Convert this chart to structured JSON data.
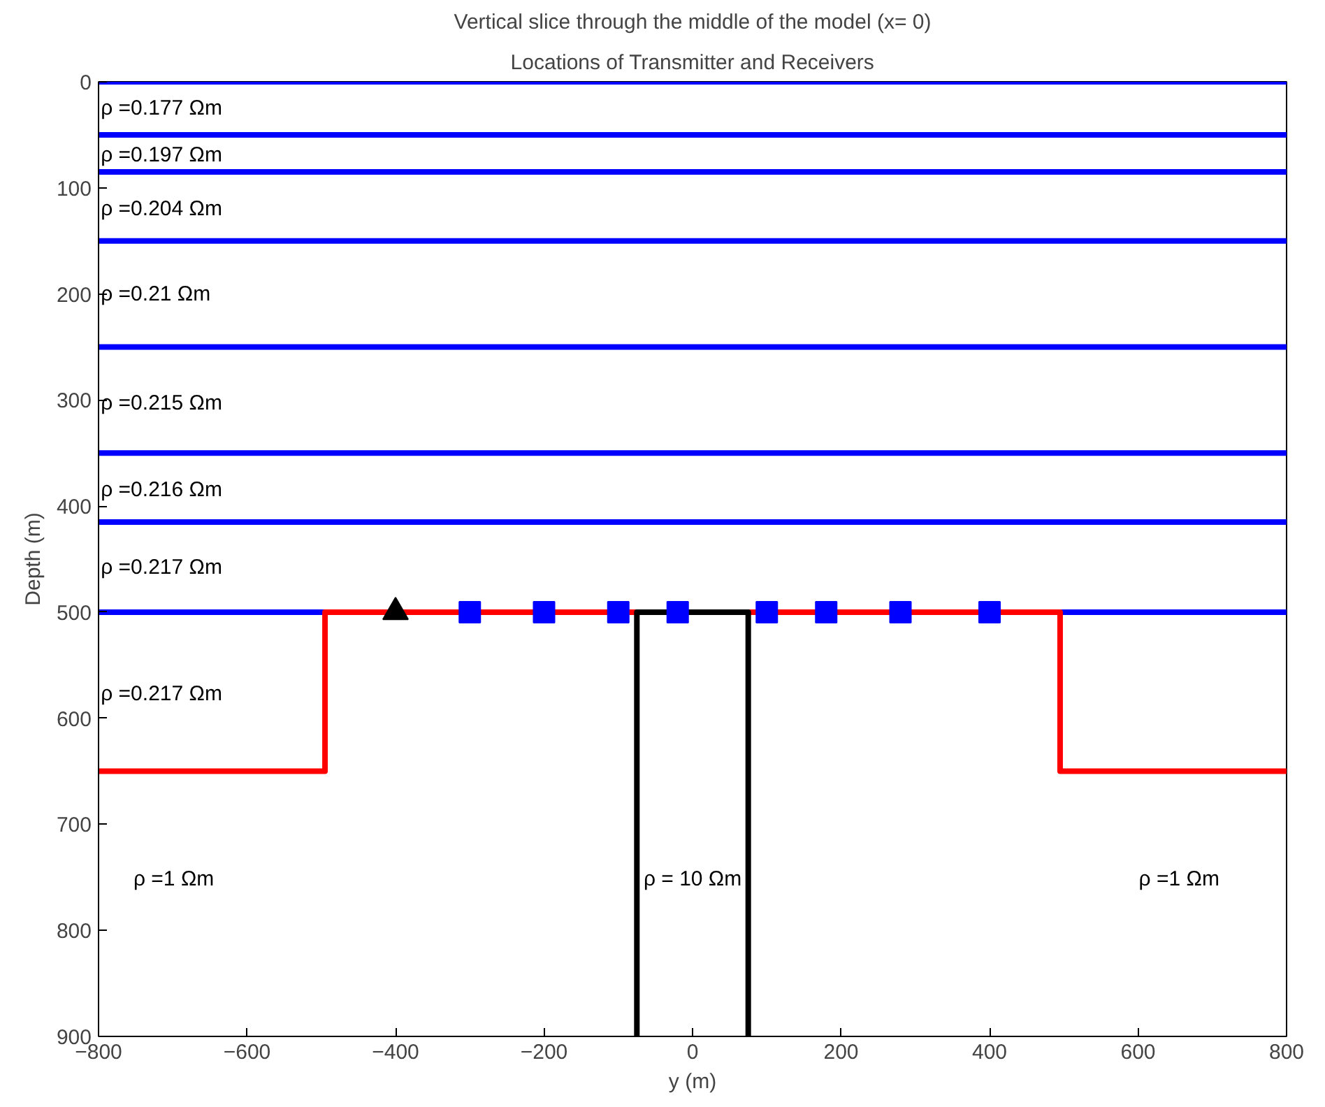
{
  "chart_data": {
    "type": "line",
    "title": "Vertical slice through the middle of the model (x= 0)",
    "subtitle": "Locations of Transmitter and Receivers",
    "xlabel": "y (m)",
    "ylabel": "Depth (m)",
    "xlim": [
      -800,
      800
    ],
    "ylim": [
      900,
      0
    ],
    "xticks": [
      -800,
      -600,
      -400,
      -200,
      0,
      200,
      400,
      600,
      800
    ],
    "yticks": [
      0,
      100,
      200,
      300,
      400,
      500,
      600,
      700,
      800,
      900
    ],
    "grid": false,
    "line_style": "solid",
    "marker": "none",
    "series": [
      {
        "color": "#0000ff",
        "x": [
          -800,
          800
        ],
        "values": [
          0,
          0
        ]
      },
      {
        "color": "#0000ff",
        "x": [
          -800,
          800
        ],
        "values": [
          50,
          50
        ]
      },
      {
        "color": "#0000ff",
        "x": [
          -800,
          800
        ],
        "values": [
          85,
          85
        ]
      },
      {
        "color": "#0000ff",
        "x": [
          -800,
          800
        ],
        "values": [
          150,
          150
        ]
      },
      {
        "color": "#0000ff",
        "x": [
          -800,
          800
        ],
        "values": [
          250,
          250
        ]
      },
      {
        "color": "#0000ff",
        "x": [
          -800,
          800
        ],
        "values": [
          350,
          350
        ]
      },
      {
        "color": "#0000ff",
        "x": [
          -800,
          800
        ],
        "values": [
          415,
          415
        ]
      },
      {
        "color": "#0000ff",
        "x": [
          -800,
          800
        ],
        "values": [
          500,
          500
        ]
      },
      {
        "color": "#ff0000",
        "x": [
          -800,
          -495,
          -495,
          495,
          495,
          800
        ],
        "values": [
          650,
          650,
          500,
          500,
          650,
          650
        ]
      },
      {
        "color": "#000000",
        "x": [
          -75,
          -75,
          75,
          75
        ],
        "values": [
          900,
          500,
          500,
          900
        ]
      },
      {
        "type": "scatter",
        "marker": "triangle",
        "color": "#000000",
        "x": [
          -400
        ],
        "values": [
          500
        ]
      },
      {
        "type": "scatter",
        "marker": "square",
        "color": "#0000ff",
        "x": [
          -300,
          -200,
          -100,
          -20,
          100,
          180,
          280,
          400
        ],
        "values": [
          500,
          500,
          500,
          500,
          500,
          500,
          500,
          500
        ]
      }
    ],
    "annotations": [
      "ρ =0.177 Ωm",
      "ρ =0.197 Ωm",
      "ρ =0.204 Ωm",
      "ρ =0.21 Ωm",
      "ρ =0.215 Ωm",
      "ρ =0.216 Ωm",
      "ρ =0.217 Ωm",
      "ρ =0.217 Ωm",
      "ρ =1 Ωm",
      "ρ = 10 Ωm",
      "ρ =1 Ωm"
    ]
  }
}
